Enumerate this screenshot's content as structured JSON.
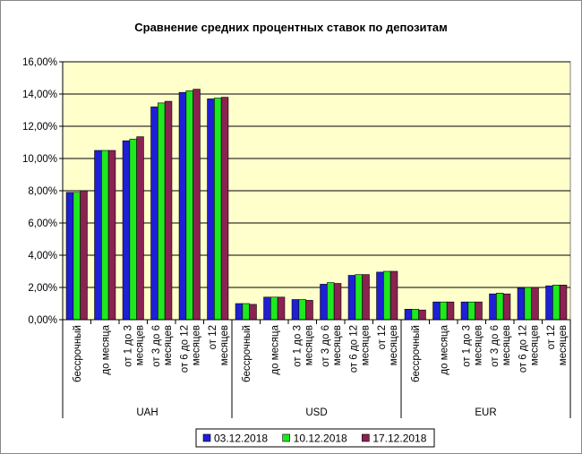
{
  "chart_data": {
    "type": "bar",
    "title": "Сравнение средних процентных ставок по депозитам",
    "ylim": [
      0,
      16
    ],
    "y_tick_labels": [
      "0,00%",
      "2,00%",
      "4,00%",
      "6,00%",
      "8,00%",
      "10,00%",
      "12,00%",
      "14,00%",
      "16,00%"
    ],
    "grid": true,
    "legend_position": "bottom",
    "groups": [
      "UAH",
      "USD",
      "EUR"
    ],
    "category_labels": [
      [
        "бессрочный"
      ],
      [
        "до месяца"
      ],
      [
        "от 1 до 3",
        "месяцев"
      ],
      [
        "от 3 до 6",
        "месяцев"
      ],
      [
        "от 6 до 12",
        "месяцев"
      ],
      [
        "от 12",
        "месяцев"
      ]
    ],
    "series": [
      {
        "name": "03.12.2018",
        "color": "#1f1fd6",
        "values": [
          [
            7.9,
            10.5,
            11.1,
            13.2,
            14.1,
            13.7
          ],
          [
            1.0,
            1.4,
            1.25,
            2.2,
            2.75,
            2.95
          ],
          [
            0.65,
            1.1,
            1.1,
            1.6,
            1.95,
            2.1
          ]
        ]
      },
      {
        "name": "10.12.2018",
        "color": "#1ee81e",
        "values": [
          [
            7.9,
            10.5,
            11.2,
            13.45,
            14.2,
            13.75
          ],
          [
            1.0,
            1.4,
            1.25,
            2.3,
            2.8,
            3.0
          ],
          [
            0.65,
            1.1,
            1.1,
            1.65,
            2.0,
            2.15
          ]
        ]
      },
      {
        "name": "17.12.2018",
        "color": "#8b2252",
        "values": [
          [
            8.0,
            10.5,
            11.35,
            13.55,
            14.3,
            13.8
          ],
          [
            0.95,
            1.4,
            1.2,
            2.25,
            2.8,
            3.0
          ],
          [
            0.6,
            1.1,
            1.1,
            1.6,
            2.0,
            2.15
          ]
        ]
      }
    ]
  }
}
